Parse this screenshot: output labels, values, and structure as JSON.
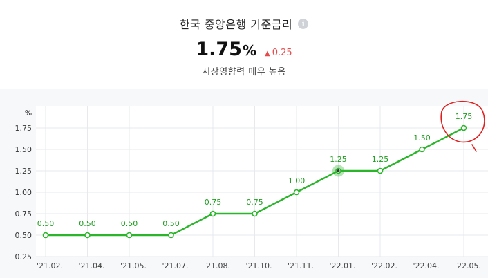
{
  "header": {
    "title": "한국 중앙은행 기준금리",
    "info_icon": "info-icon",
    "rate_value": "1.75",
    "rate_unit": "%",
    "change_direction": "up",
    "change_value": "0.25",
    "subtitle": "시장영향력 매우 높음"
  },
  "colors": {
    "line": "#2ab52a",
    "change_up": "#e64a4a",
    "grid": "#e7e9ec",
    "annotation": "#e02020"
  },
  "chart_data": {
    "type": "line",
    "title": "",
    "xlabel": "",
    "ylabel": "%",
    "categories": [
      "'21.02.",
      "'21.04.",
      "'21.05.",
      "'21.07.",
      "'21.08.",
      "'21.10.",
      "'21.11.",
      "'22.01.",
      "'22.02.",
      "'22.04.",
      "'22.05."
    ],
    "series": [
      {
        "values": [
          0.5,
          0.5,
          0.5,
          0.5,
          0.75,
          0.75,
          1.0,
          1.25,
          1.25,
          1.5,
          1.75
        ]
      }
    ],
    "data_labels": [
      "0.50",
      "0.50",
      "0.50",
      "0.50",
      "0.75",
      "0.75",
      "1.00",
      "1.25",
      "1.25",
      "1.50",
      "1.75"
    ],
    "y_ticks": [
      "1.75",
      "1.50",
      "1.25",
      "1.00",
      "0.75",
      "0.50",
      "0.25"
    ],
    "y_tick_values": [
      1.75,
      1.5,
      1.25,
      1.0,
      0.75,
      0.5,
      0.25
    ],
    "ylim": [
      0.25,
      2.0
    ],
    "grid": true,
    "highlighted_index": 7,
    "circled_index": 10
  }
}
